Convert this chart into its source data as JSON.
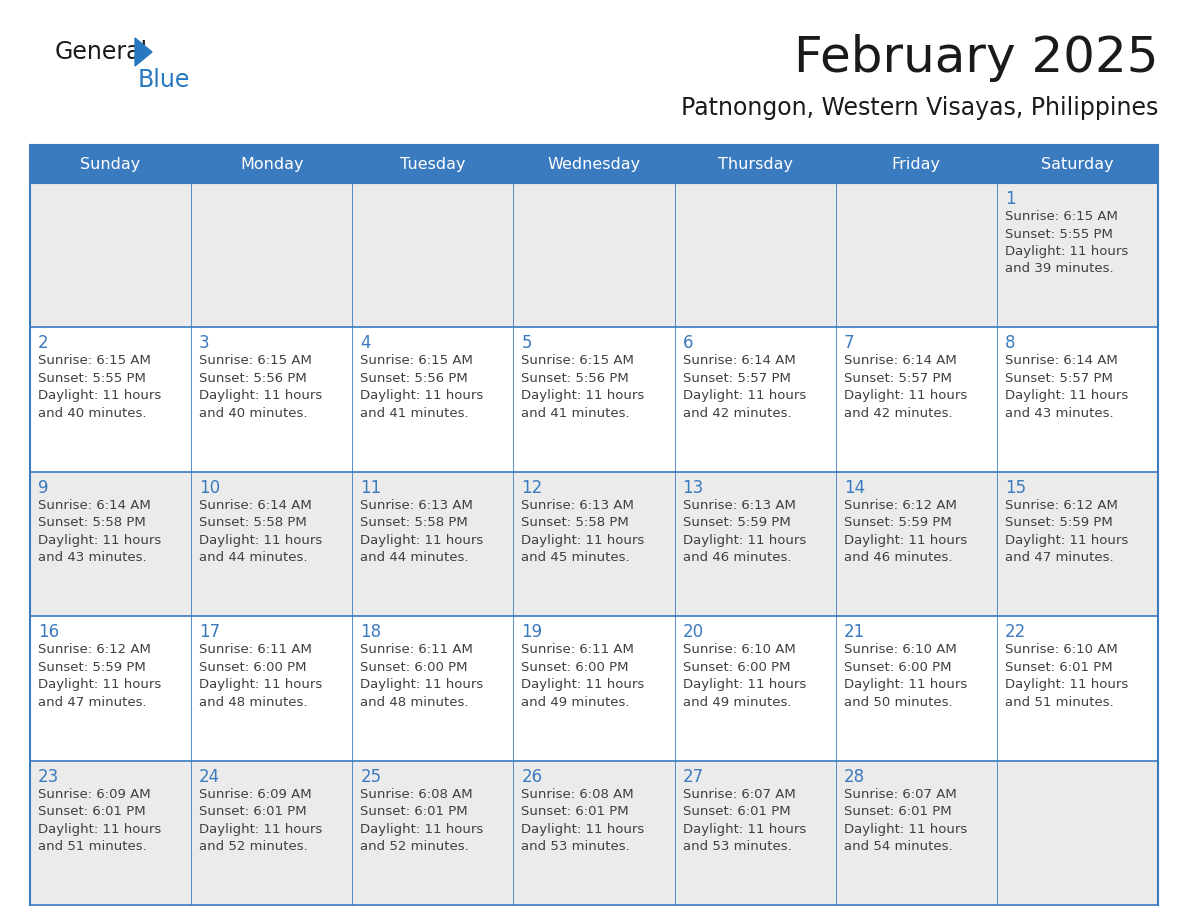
{
  "title": "February 2025",
  "subtitle": "Patnongon, Western Visayas, Philippines",
  "days_of_week": [
    "Sunday",
    "Monday",
    "Tuesday",
    "Wednesday",
    "Thursday",
    "Friday",
    "Saturday"
  ],
  "header_bg": "#3a7abf",
  "header_text": "#ffffff",
  "row_bg_odd": "#ebebeb",
  "row_bg_even": "#ffffff",
  "separator_color": "#3a7abf",
  "day_number_color": "#3a7abf",
  "text_color": "#404040",
  "title_color": "#1a1a1a",
  "subtitle_color": "#1a1a1a",
  "logo_general_color": "#1a1a1a",
  "logo_blue_color": "#2878c0",
  "calendar_data": [
    [
      null,
      null,
      null,
      null,
      null,
      null,
      {
        "day": 1,
        "sunrise": "6:15 AM",
        "sunset": "5:55 PM",
        "daylight_line1": "Daylight: 11 hours",
        "daylight_line2": "and 39 minutes."
      }
    ],
    [
      {
        "day": 2,
        "sunrise": "6:15 AM",
        "sunset": "5:55 PM",
        "daylight_line1": "Daylight: 11 hours",
        "daylight_line2": "and 40 minutes."
      },
      {
        "day": 3,
        "sunrise": "6:15 AM",
        "sunset": "5:56 PM",
        "daylight_line1": "Daylight: 11 hours",
        "daylight_line2": "and 40 minutes."
      },
      {
        "day": 4,
        "sunrise": "6:15 AM",
        "sunset": "5:56 PM",
        "daylight_line1": "Daylight: 11 hours",
        "daylight_line2": "and 41 minutes."
      },
      {
        "day": 5,
        "sunrise": "6:15 AM",
        "sunset": "5:56 PM",
        "daylight_line1": "Daylight: 11 hours",
        "daylight_line2": "and 41 minutes."
      },
      {
        "day": 6,
        "sunrise": "6:14 AM",
        "sunset": "5:57 PM",
        "daylight_line1": "Daylight: 11 hours",
        "daylight_line2": "and 42 minutes."
      },
      {
        "day": 7,
        "sunrise": "6:14 AM",
        "sunset": "5:57 PM",
        "daylight_line1": "Daylight: 11 hours",
        "daylight_line2": "and 42 minutes."
      },
      {
        "day": 8,
        "sunrise": "6:14 AM",
        "sunset": "5:57 PM",
        "daylight_line1": "Daylight: 11 hours",
        "daylight_line2": "and 43 minutes."
      }
    ],
    [
      {
        "day": 9,
        "sunrise": "6:14 AM",
        "sunset": "5:58 PM",
        "daylight_line1": "Daylight: 11 hours",
        "daylight_line2": "and 43 minutes."
      },
      {
        "day": 10,
        "sunrise": "6:14 AM",
        "sunset": "5:58 PM",
        "daylight_line1": "Daylight: 11 hours",
        "daylight_line2": "and 44 minutes."
      },
      {
        "day": 11,
        "sunrise": "6:13 AM",
        "sunset": "5:58 PM",
        "daylight_line1": "Daylight: 11 hours",
        "daylight_line2": "and 44 minutes."
      },
      {
        "day": 12,
        "sunrise": "6:13 AM",
        "sunset": "5:58 PM",
        "daylight_line1": "Daylight: 11 hours",
        "daylight_line2": "and 45 minutes."
      },
      {
        "day": 13,
        "sunrise": "6:13 AM",
        "sunset": "5:59 PM",
        "daylight_line1": "Daylight: 11 hours",
        "daylight_line2": "and 46 minutes."
      },
      {
        "day": 14,
        "sunrise": "6:12 AM",
        "sunset": "5:59 PM",
        "daylight_line1": "Daylight: 11 hours",
        "daylight_line2": "and 46 minutes."
      },
      {
        "day": 15,
        "sunrise": "6:12 AM",
        "sunset": "5:59 PM",
        "daylight_line1": "Daylight: 11 hours",
        "daylight_line2": "and 47 minutes."
      }
    ],
    [
      {
        "day": 16,
        "sunrise": "6:12 AM",
        "sunset": "5:59 PM",
        "daylight_line1": "Daylight: 11 hours",
        "daylight_line2": "and 47 minutes."
      },
      {
        "day": 17,
        "sunrise": "6:11 AM",
        "sunset": "6:00 PM",
        "daylight_line1": "Daylight: 11 hours",
        "daylight_line2": "and 48 minutes."
      },
      {
        "day": 18,
        "sunrise": "6:11 AM",
        "sunset": "6:00 PM",
        "daylight_line1": "Daylight: 11 hours",
        "daylight_line2": "and 48 minutes."
      },
      {
        "day": 19,
        "sunrise": "6:11 AM",
        "sunset": "6:00 PM",
        "daylight_line1": "Daylight: 11 hours",
        "daylight_line2": "and 49 minutes."
      },
      {
        "day": 20,
        "sunrise": "6:10 AM",
        "sunset": "6:00 PM",
        "daylight_line1": "Daylight: 11 hours",
        "daylight_line2": "and 49 minutes."
      },
      {
        "day": 21,
        "sunrise": "6:10 AM",
        "sunset": "6:00 PM",
        "daylight_line1": "Daylight: 11 hours",
        "daylight_line2": "and 50 minutes."
      },
      {
        "day": 22,
        "sunrise": "6:10 AM",
        "sunset": "6:01 PM",
        "daylight_line1": "Daylight: 11 hours",
        "daylight_line2": "and 51 minutes."
      }
    ],
    [
      {
        "day": 23,
        "sunrise": "6:09 AM",
        "sunset": "6:01 PM",
        "daylight_line1": "Daylight: 11 hours",
        "daylight_line2": "and 51 minutes."
      },
      {
        "day": 24,
        "sunrise": "6:09 AM",
        "sunset": "6:01 PM",
        "daylight_line1": "Daylight: 11 hours",
        "daylight_line2": "and 52 minutes."
      },
      {
        "day": 25,
        "sunrise": "6:08 AM",
        "sunset": "6:01 PM",
        "daylight_line1": "Daylight: 11 hours",
        "daylight_line2": "and 52 minutes."
      },
      {
        "day": 26,
        "sunrise": "6:08 AM",
        "sunset": "6:01 PM",
        "daylight_line1": "Daylight: 11 hours",
        "daylight_line2": "and 53 minutes."
      },
      {
        "day": 27,
        "sunrise": "6:07 AM",
        "sunset": "6:01 PM",
        "daylight_line1": "Daylight: 11 hours",
        "daylight_line2": "and 53 minutes."
      },
      {
        "day": 28,
        "sunrise": "6:07 AM",
        "sunset": "6:01 PM",
        "daylight_line1": "Daylight: 11 hours",
        "daylight_line2": "and 54 minutes."
      },
      null
    ]
  ]
}
